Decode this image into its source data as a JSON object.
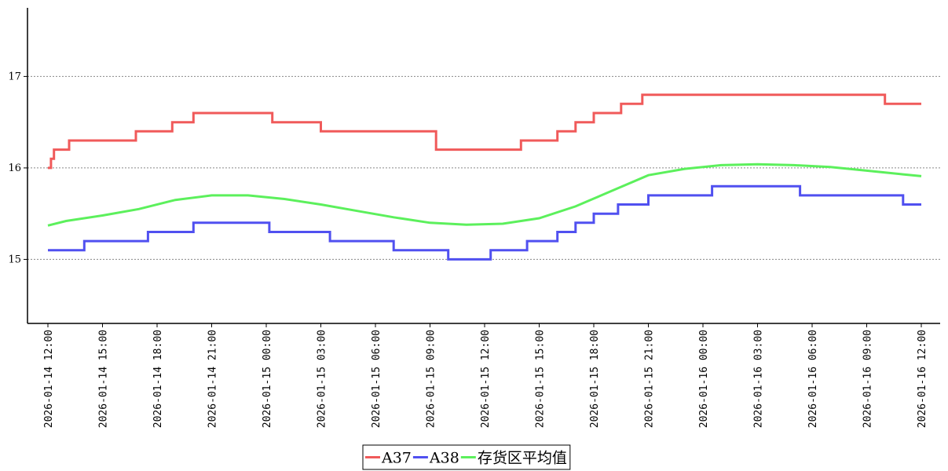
{
  "chart_data": {
    "type": "line",
    "title": "",
    "xlabel": "",
    "ylabel": "",
    "ylim": [
      14.3,
      17.75
    ],
    "yticks": [
      15,
      16,
      17
    ],
    "xlim": [
      "2026-01-14 12:00",
      "2026-01-16 12:00"
    ],
    "xticks": [
      "2026-01-14 12:00",
      "2026-01-14 15:00",
      "2026-01-14 18:00",
      "2026-01-14 21:00",
      "2026-01-15 00:00",
      "2026-01-15 03:00",
      "2026-01-15 06:00",
      "2026-01-15 09:00",
      "2026-01-15 12:00",
      "2026-01-15 15:00",
      "2026-01-15 18:00",
      "2026-01-15 21:00",
      "2026-01-16 00:00",
      "2026-01-16 03:00",
      "2026-01-16 06:00",
      "2026-01-16 09:00",
      "2026-01-16 12:00"
    ],
    "grid": "horizontal dotted",
    "legend": "bottom-center",
    "series": [
      {
        "name": "A37",
        "color": "#f05a5a",
        "x": [
          "2026-01-14 12:00",
          "2026-01-14 12:10",
          "2026-01-14 12:20",
          "2026-01-14 13:10",
          "2026-01-14 16:50",
          "2026-01-14 18:50",
          "2026-01-14 20:00",
          "2026-01-15 00:20",
          "2026-01-15 03:00",
          "2026-01-15 09:20",
          "2026-01-15 14:00",
          "2026-01-15 16:00",
          "2026-01-15 17:00",
          "2026-01-15 18:00",
          "2026-01-15 19:30",
          "2026-01-15 20:40",
          "2026-01-16 10:00"
        ],
        "values": [
          16.0,
          16.1,
          16.2,
          16.3,
          16.4,
          16.5,
          16.6,
          16.5,
          16.4,
          16.2,
          16.3,
          16.4,
          16.5,
          16.6,
          16.7,
          16.8,
          16.7
        ]
      },
      {
        "name": "A38",
        "color": "#5050f0",
        "x": [
          "2026-01-14 12:00",
          "2026-01-14 14:00",
          "2026-01-14 17:30",
          "2026-01-14 20:00",
          "2026-01-15 00:10",
          "2026-01-15 03:30",
          "2026-01-15 07:00",
          "2026-01-15 10:00",
          "2026-01-15 12:20",
          "2026-01-15 14:20",
          "2026-01-15 16:00",
          "2026-01-15 17:00",
          "2026-01-15 18:00",
          "2026-01-15 19:20",
          "2026-01-15 21:00",
          "2026-01-16 00:30",
          "2026-01-16 05:20",
          "2026-01-16 11:00"
        ],
        "values": [
          15.1,
          15.2,
          15.3,
          15.4,
          15.3,
          15.2,
          15.1,
          15.0,
          15.1,
          15.2,
          15.3,
          15.4,
          15.5,
          15.6,
          15.7,
          15.8,
          15.7,
          15.6
        ]
      },
      {
        "name": "存货区平均值",
        "color": "#5cf05c",
        "x": [
          "2026-01-14 12:00",
          "2026-01-14 13:00",
          "2026-01-14 15:00",
          "2026-01-14 17:00",
          "2026-01-14 19:00",
          "2026-01-14 21:00",
          "2026-01-14 23:00",
          "2026-01-15 01:00",
          "2026-01-15 03:00",
          "2026-01-15 05:00",
          "2026-01-15 07:00",
          "2026-01-15 09:00",
          "2026-01-15 11:00",
          "2026-01-15 13:00",
          "2026-01-15 15:00",
          "2026-01-15 17:00",
          "2026-01-15 19:00",
          "2026-01-15 21:00",
          "2026-01-15 23:00",
          "2026-01-16 01:00",
          "2026-01-16 03:00",
          "2026-01-16 05:00",
          "2026-01-16 07:00",
          "2026-01-16 09:00",
          "2026-01-16 11:00",
          "2026-01-16 12:00"
        ],
        "values": [
          15.37,
          15.42,
          15.48,
          15.55,
          15.65,
          15.7,
          15.7,
          15.66,
          15.6,
          15.53,
          15.46,
          15.4,
          15.38,
          15.39,
          15.45,
          15.58,
          15.75,
          15.92,
          15.99,
          16.03,
          16.04,
          16.03,
          16.01,
          15.97,
          15.93,
          15.91
        ]
      }
    ]
  }
}
